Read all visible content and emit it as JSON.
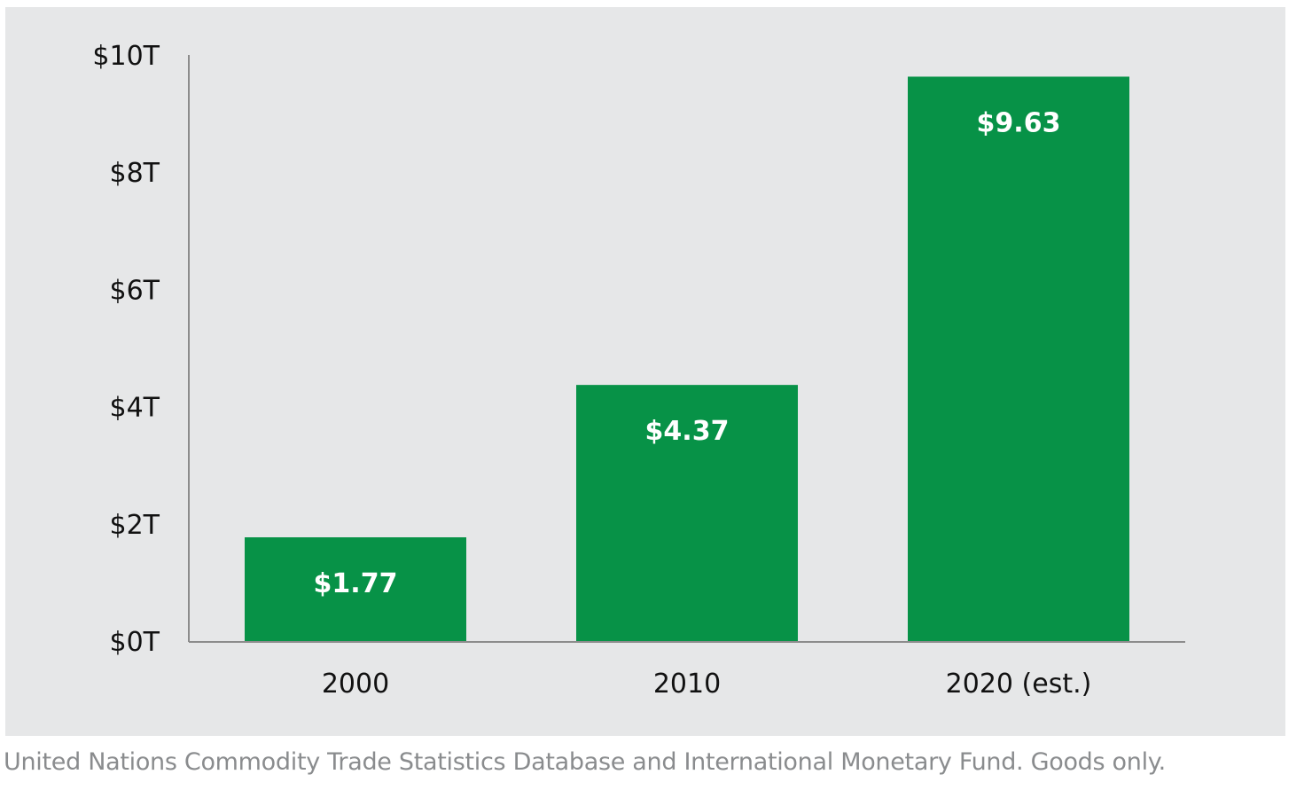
{
  "chart_data": {
    "type": "bar",
    "categories": [
      "2000",
      "2010",
      "2020 (est.)"
    ],
    "values": [
      1.77,
      4.37,
      9.63
    ],
    "data_labels": [
      "$1.77",
      "$4.37",
      "$9.63"
    ],
    "title": "",
    "xlabel": "",
    "ylabel": "",
    "ylim": [
      0,
      10
    ],
    "yticks": [
      0,
      2,
      4,
      6,
      8,
      10
    ],
    "ytick_labels": [
      "$0T",
      "$2T",
      "$4T",
      "$6T",
      "$8T",
      "$10T"
    ],
    "grid": false,
    "bar_color": "#079247",
    "background_color": "#e6e7e8"
  },
  "caption": "United Nations Commodity Trade Statistics Database and International Monetary Fund. Goods only."
}
